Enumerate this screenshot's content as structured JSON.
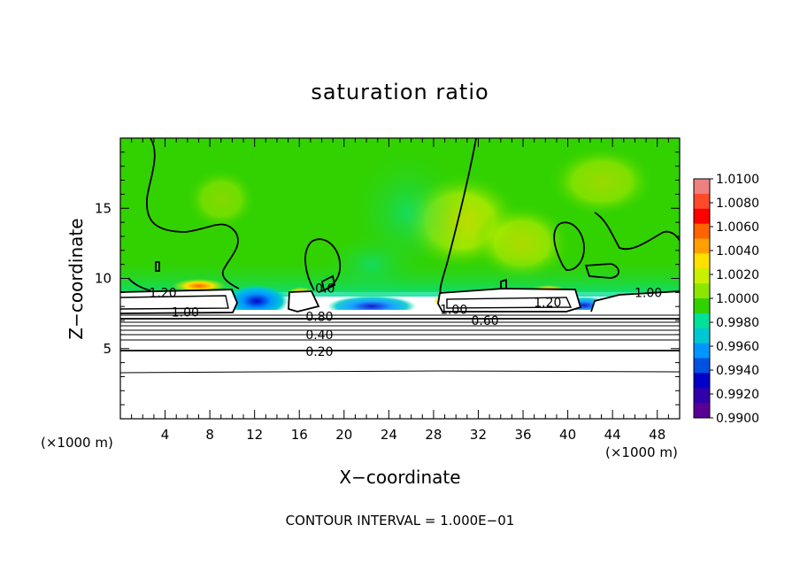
{
  "chart_data": {
    "type": "heatmap",
    "title": "saturation ratio",
    "xlabel": "X−coordinate",
    "ylabel": "Z−coordinate",
    "x_unit": "(×1000 m)",
    "y_unit": "(×1000 m)",
    "footer": "CONTOUR INTERVAL = 1.000E−01",
    "xlim": [
      0,
      50
    ],
    "ylim": [
      0,
      20
    ],
    "x_ticks": [
      4,
      8,
      12,
      16,
      20,
      24,
      28,
      32,
      36,
      40,
      44,
      48
    ],
    "y_ticks": [
      5,
      10,
      15
    ],
    "grid": false,
    "legend_position": "right",
    "colorbar": {
      "min": 0.99,
      "max": 1.01,
      "labels": [
        "1.0100",
        "1.0080",
        "1.0060",
        "1.0040",
        "1.0020",
        "1.0000",
        "0.9980",
        "0.9960",
        "0.9940",
        "0.9920",
        "0.9900"
      ],
      "colors": [
        "#f08080",
        "#ff4a2a",
        "#ff0000",
        "#ff6400",
        "#ffa000",
        "#ffe000",
        "#c8f000",
        "#8ce600",
        "#32d200",
        "#00e19a",
        "#00c8d2",
        "#0096ff",
        "#0050e1",
        "#0000c8",
        "#3000aa",
        "#5a0096"
      ]
    },
    "contour_labels": [
      {
        "text": "1.20",
        "x": 3.8,
        "y": 9.0
      },
      {
        "text": "1.00",
        "x": 5.8,
        "y": 7.6
      },
      {
        "text": "0.80",
        "x": 17.8,
        "y": 7.3
      },
      {
        "text": "0.40",
        "x": 17.8,
        "y": 6.0
      },
      {
        "text": "0.20",
        "x": 17.8,
        "y": 4.8
      },
      {
        "text": "0.60",
        "x": 32.6,
        "y": 7.0
      },
      {
        "text": "1.00",
        "x": 29.8,
        "y": 7.8
      },
      {
        "text": "1.20",
        "x": 38.2,
        "y": 8.3
      },
      {
        "text": "1.00",
        "x": 47.2,
        "y": 9.0
      },
      {
        "text": "0.0",
        "x": 18.3,
        "y": 9.3
      }
    ]
  }
}
